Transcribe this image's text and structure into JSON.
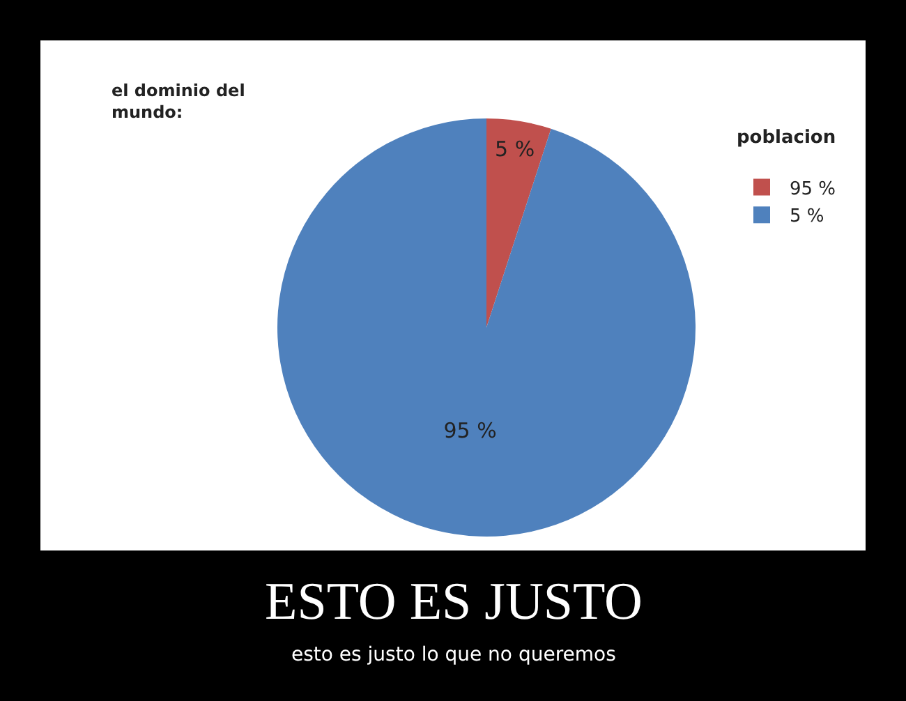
{
  "chart_data": {
    "type": "pie",
    "title": "el dominio del mundo:",
    "legend_title": "poblacion",
    "legend": "top right",
    "categories": [
      "95 %",
      "5 %"
    ],
    "values": [
      5,
      95
    ],
    "colors": [
      "#c0504d",
      "#4f81bd"
    ],
    "value_labels": [
      "5 %",
      "95 %"
    ],
    "annotations": [
      "ESTO ES JUSTO",
      "esto es justo lo que no queremos"
    ]
  }
}
